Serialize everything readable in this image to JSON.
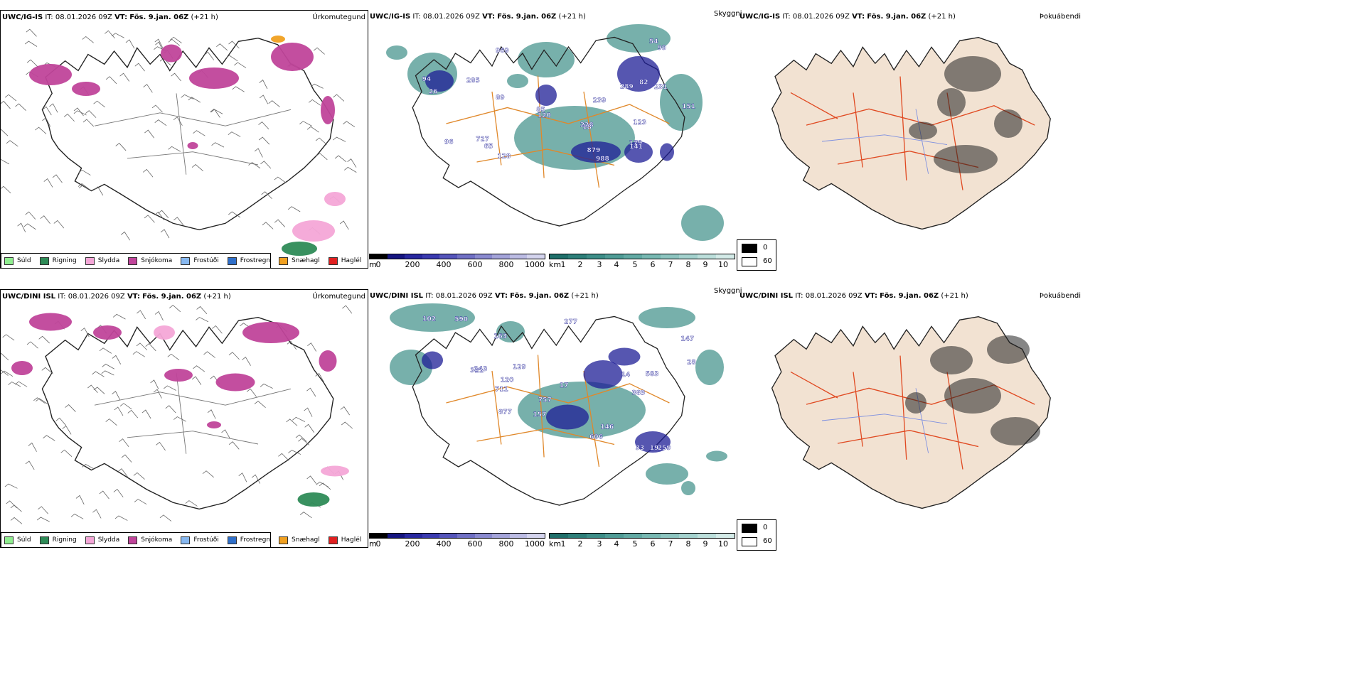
{
  "rows": [
    {
      "precip_title": {
        "model": "UWC/IG-IS",
        "it_label": "IT:",
        "it_value": "08.01.2026 09Z",
        "vt_label": "VT:",
        "vt_value": "Fös. 9.jan. 06Z",
        "lead": "(+21 h)"
      },
      "vis_title": {
        "model": "UWC/IG-IS",
        "it_label": "IT:",
        "it_value": "08.01.2026 09Z",
        "vt_label": "VT:",
        "vt_value": "Fös. 9.jan. 06Z",
        "lead": "(+21 h)"
      },
      "cloud_title": {
        "model": "UWC/IG-IS",
        "it_label": "IT:",
        "it_value": "08.01.2026 09Z",
        "vt_label": "VT:",
        "vt_value": "Fös. 9.jan. 06Z",
        "lead": "(+21 h)"
      },
      "visibility_labels": [
        "988",
        "969",
        "727",
        "285",
        "82",
        "879",
        "151",
        "89",
        "120",
        "65",
        "96",
        "94",
        "85",
        "228",
        "289",
        "54",
        "26",
        "99",
        "123",
        "231",
        "179",
        "18",
        "128",
        "141",
        "239"
      ]
    },
    {
      "precip_title": {
        "model": "UWC/DINI ISL",
        "it_label": "IT:",
        "it_value": "08.01.2026 09Z",
        "vt_label": "VT:",
        "vt_value": "Fös. 9.jan. 06Z",
        "lead": "(+21 h)"
      },
      "vis_title": {
        "model": "UWC/DINI ISL",
        "it_label": "IT:",
        "it_value": "08.01.2026 09Z",
        "vt_label": "VT:",
        "vt_value": "Fös. 9.jan. 06Z",
        "lead": "(+21 h)"
      },
      "cloud_title": {
        "model": "UWC/DINI ISL",
        "it_label": "IT:",
        "it_value": "08.01.2026 09Z",
        "vt_label": "VT:",
        "vt_value": "Fös. 9.jan. 06Z",
        "lead": "(+21 h)"
      },
      "visibility_labels": [
        "757",
        "321",
        "590",
        "383",
        "259",
        "163",
        "157",
        "711",
        "877",
        "14",
        "583",
        "277",
        "102",
        "33",
        "120",
        "146",
        "17",
        "28",
        "147",
        "129",
        "19",
        "243",
        "606"
      ]
    }
  ],
  "param_precip": "Úrkomutegund",
  "param_vis": "Skyggni",
  "param_cloud": "Þokuábendi",
  "precip_legend": [
    {
      "label": "Súld",
      "color": "#90ee90"
    },
    {
      "label": "Rigning",
      "color": "#2e8b57"
    },
    {
      "label": "Slydda",
      "color": "#f4a6d7"
    },
    {
      "label": "Snjókoma",
      "color": "#c0449a"
    },
    {
      "label": "Frostúði",
      "color": "#87b8f0"
    },
    {
      "label": "Frostregn",
      "color": "#2f6fc9"
    },
    {
      "label": "Snæhagl",
      "color": "#f0a020"
    },
    {
      "label": "Haglél",
      "color": "#e02020"
    }
  ],
  "height_bar": {
    "unit": "m",
    "ticks": [
      "0",
      "200",
      "400",
      "600",
      "800",
      "1000"
    ],
    "colors": [
      "#000000",
      "#151580",
      "#2828a0",
      "#3a3ab0",
      "#5555bb",
      "#7070c5",
      "#8a8ad0",
      "#a4a4da",
      "#bcbce4",
      "#d4d4ee"
    ]
  },
  "vis_bar": {
    "unit": "km",
    "ticks": [
      "1",
      "2",
      "3",
      "4",
      "5",
      "6",
      "7",
      "8",
      "9",
      "10"
    ],
    "colors": [
      "#1f6f6a",
      "#2d7f79",
      "#3d8e88",
      "#4f9c96",
      "#62aaa4",
      "#77b8b2",
      "#8dc5c0",
      "#a4d2ce",
      "#bcdfdb",
      "#d4ebe8"
    ]
  },
  "cloud_key": [
    {
      "label": "0",
      "color": "#000000"
    },
    {
      "label": "60",
      "color": "#ffffff"
    }
  ],
  "colors": {
    "snow": "#c0449a",
    "sleet": "#f4a6d7",
    "rain": "#2e8b57",
    "graupel": "#f0a020",
    "teal": "#3d8e88",
    "blue": "#1e1e96",
    "orange": "#e0882a",
    "land": "#f2e2d2",
    "red": "#e04a22"
  }
}
